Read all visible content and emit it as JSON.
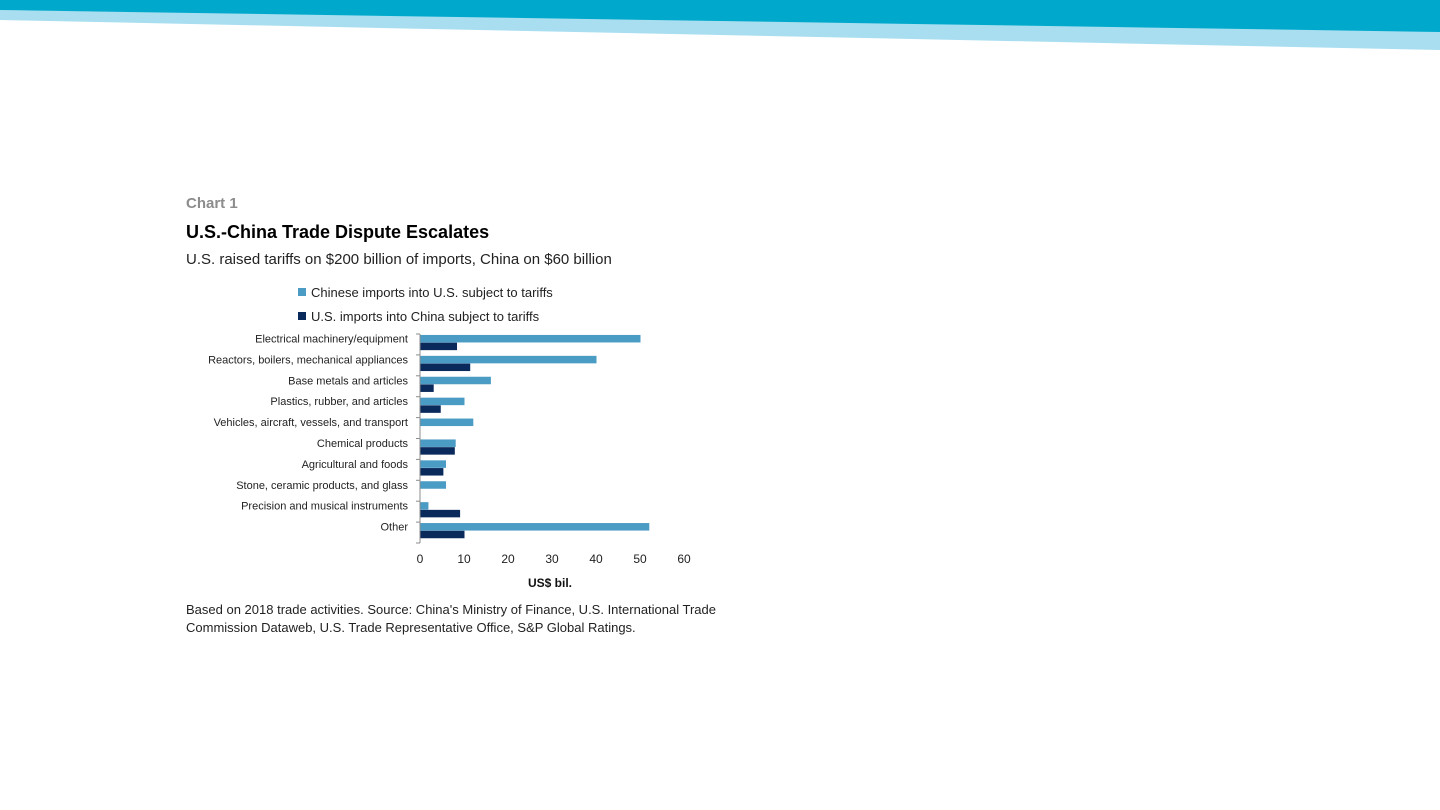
{
  "header": {
    "chart_label": "Chart 1",
    "title": "U.S.-China Trade Dispute Escalates",
    "subtitle": "U.S. raised tariffs on $200 billion of imports, China on $60 billion"
  },
  "colors": {
    "banner_dark": "#00a9cc",
    "banner_light": "#a8def0",
    "series_chinese": "#4a9cc5",
    "series_us": "#0a2a5c"
  },
  "chart_data": {
    "type": "bar",
    "orientation": "horizontal",
    "categories": [
      "Electrical machinery/equipment",
      "Reactors, boilers, mechanical appliances",
      "Base metals and articles",
      "Plastics, rubber, and articles",
      "Vehicles, aircraft, vessels, and transport",
      "Chemical products",
      "Agricultural and foods",
      "Stone, ceramic products, and glass",
      "Precision and musical instruments",
      "Other"
    ],
    "series": [
      {
        "name": "Chinese imports into U.S. subject to tariffs",
        "values": [
          50,
          40,
          16,
          10,
          12,
          8,
          5.8,
          5.8,
          1.8,
          52
        ]
      },
      {
        "name": "U.S. imports into China subject to tariffs",
        "values": [
          8.3,
          11.3,
          3,
          4.6,
          0,
          7.8,
          5.2,
          0,
          9,
          10
        ]
      }
    ],
    "xlabel": "US$ bil.",
    "xlim": [
      0,
      60
    ],
    "xticks": [
      0,
      10,
      20,
      30,
      40,
      50,
      60
    ],
    "legend_position": "top"
  },
  "footnote": "Based on 2018 trade activities. Source: China's Ministry of Finance, U.S. International Trade Commission Dataweb, U.S. Trade Representative Office, S&P Global Ratings."
}
